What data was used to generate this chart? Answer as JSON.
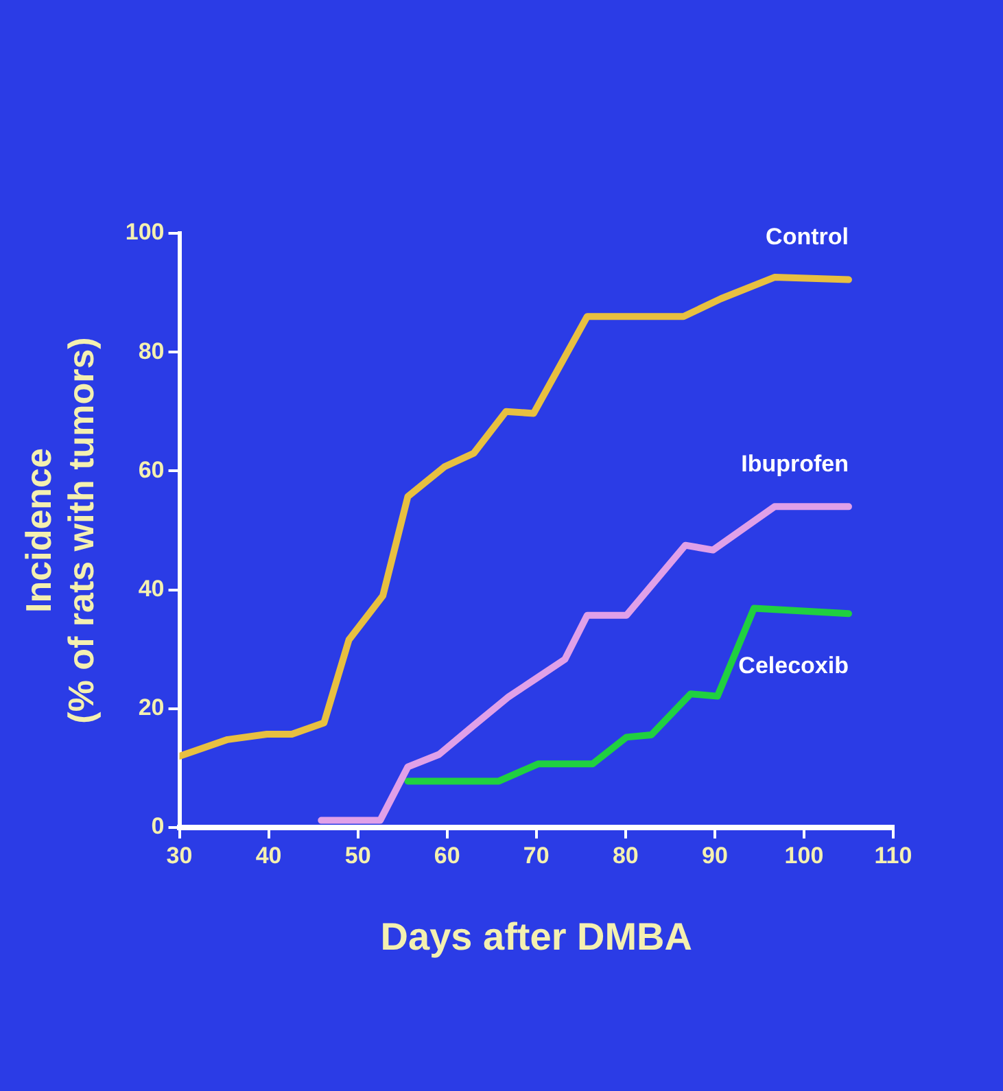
{
  "chart_data": {
    "type": "line",
    "xlabel": "Days after DMBA",
    "ylabel": "Incidence\n(% of rats with tumors)",
    "xlim": [
      30,
      110
    ],
    "xticks": [
      30,
      40,
      50,
      60,
      70,
      80,
      90,
      100,
      110
    ],
    "ylim": [
      0,
      100
    ],
    "yticks": [
      0,
      20,
      40,
      60,
      80,
      100
    ],
    "grid": false,
    "legend": false,
    "marker": "none",
    "line_style": "solid",
    "series": [
      {
        "name": "Control",
        "color": "#e8c040",
        "x": [
          30,
          35.4,
          39.8,
          42.6,
          46.2,
          49,
          52.8,
          55.6,
          59.7,
          63,
          66.6,
          69.7,
          75.7,
          86.5,
          90.7,
          96.7,
          105
        ],
        "values": [
          12,
          14.8,
          15.7,
          15.7,
          17.6,
          31.6,
          39,
          55.7,
          60.7,
          63,
          70,
          69.7,
          86,
          86,
          89,
          92.6,
          92.2
        ]
      },
      {
        "name": "Ibuprofen",
        "color": "#e0a0e8",
        "x": [
          45.9,
          52.5,
          55.6,
          59.1,
          63,
          66.9,
          69.9,
          73.2,
          75.7,
          80.1,
          86.7,
          89.8,
          96.7,
          105
        ],
        "values": [
          1.2,
          1.2,
          10.2,
          12.3,
          17.2,
          22,
          25,
          28.3,
          35.7,
          35.7,
          47.5,
          46.7,
          54,
          54
        ]
      },
      {
        "name": "Celecoxib",
        "color": "#20d040",
        "x": [
          55.6,
          65.8,
          70.2,
          76.3,
          80.1,
          82.9,
          87.3,
          90.3,
          94.4,
          105
        ],
        "values": [
          7.8,
          7.8,
          10.7,
          10.7,
          15.2,
          15.6,
          22.5,
          22.1,
          36.9,
          36
        ]
      }
    ]
  }
}
